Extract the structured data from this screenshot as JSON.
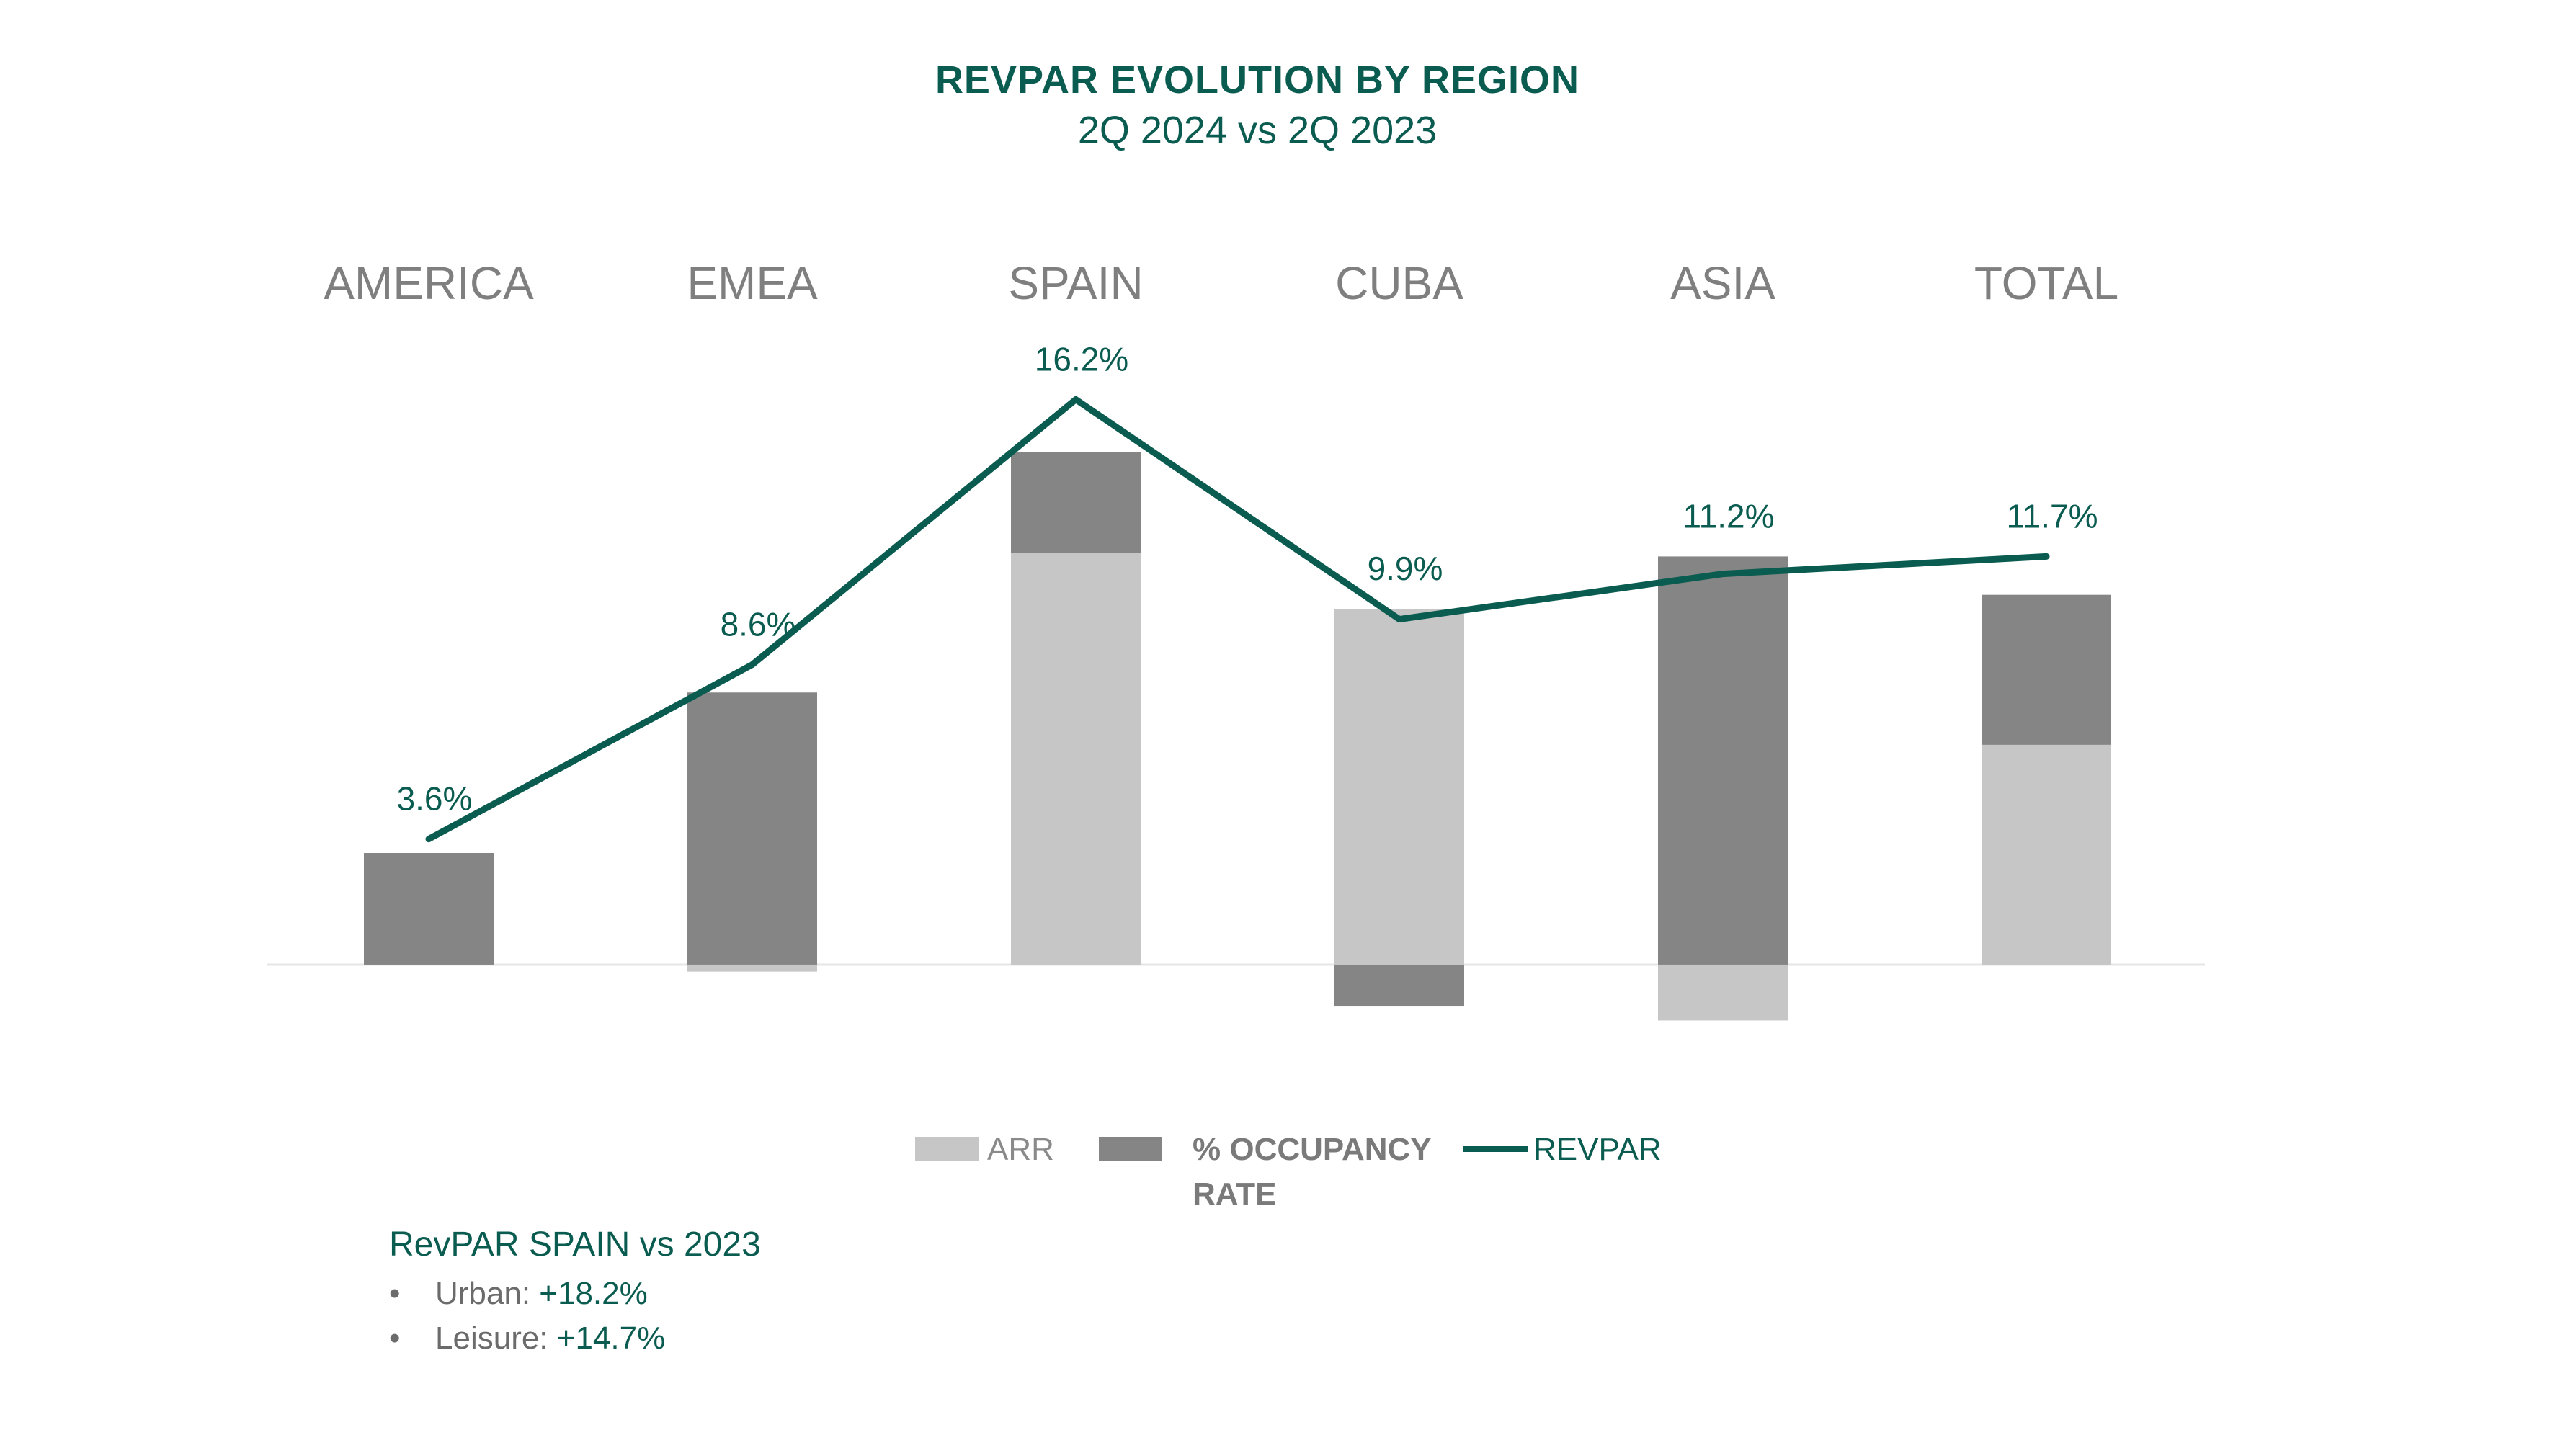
{
  "title": "REVPAR EVOLUTION BY REGION",
  "subtitle": "2Q 2024 vs 2Q 2023",
  "colors": {
    "arr": "#c6c6c6",
    "occupancy": "#858585",
    "revpar": "#0b5c50",
    "category_label": "#7f7f7f",
    "baseline": "#e6e6e6"
  },
  "chart_data": {
    "type": "bar",
    "stacked": true,
    "categories": [
      "AMERICA",
      "EMEA",
      "SPAIN",
      "CUBA",
      "ASIA",
      "TOTAL"
    ],
    "series": [
      {
        "name": "ARR",
        "kind": "bar",
        "values": [
          0.0,
          -0.2,
          11.8,
          10.2,
          -1.6,
          6.3
        ]
      },
      {
        "name": "% OCCUPANCY RATE",
        "kind": "bar",
        "values": [
          3.2,
          7.8,
          2.9,
          -1.2,
          11.7,
          4.3
        ]
      },
      {
        "name": "REVPAR",
        "kind": "line",
        "values": [
          3.6,
          8.6,
          16.2,
          9.9,
          11.2,
          11.7
        ]
      }
    ],
    "data_labels": [
      "3.6%",
      "8.6%",
      "16.2%",
      "9.9%",
      "11.2%",
      "11.7%"
    ],
    "ylim": [
      -2.5,
      16.5
    ],
    "legend_position": "bottom",
    "grid": false
  },
  "legend": {
    "arr": "ARR",
    "occupancy_line1": "% OCCUPANCY",
    "occupancy_line2": "RATE",
    "revpar": "REVPAR"
  },
  "note": {
    "title": "RevPAR SPAIN vs 2023",
    "items": [
      {
        "label": "Urban: ",
        "value": "+18.2%"
      },
      {
        "label": "Leisure: ",
        "value": "+14.7%"
      }
    ]
  }
}
